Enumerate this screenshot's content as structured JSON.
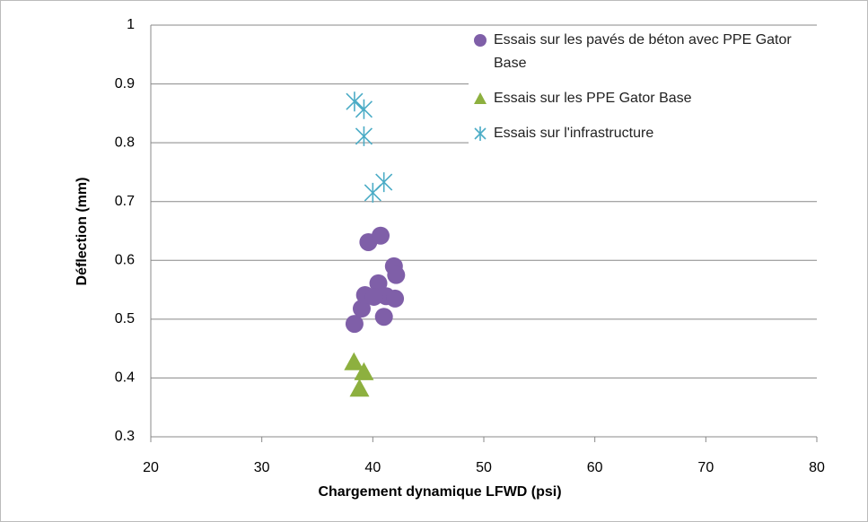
{
  "chart_data": {
    "type": "scatter",
    "xlabel": "Chargement dynamique LFWD (psi)",
    "ylabel": "Déflection (mm)",
    "xlim": [
      20,
      80
    ],
    "xticks": [
      20,
      30,
      40,
      50,
      60,
      70,
      80
    ],
    "ylim": [
      0.3,
      1
    ],
    "yticks": [
      0.3,
      0.4,
      0.5,
      0.6,
      0.7,
      0.8,
      0.9,
      1
    ],
    "grid": true,
    "legend": "top-right",
    "series": [
      {
        "name": "Essais sur les pavés de béton avec PPE Gator Base",
        "color": "#7f5fa8",
        "marker": "circle",
        "x": [
          38.35,
          39.0,
          39.3,
          39.6,
          40.7,
          40.5,
          41.0,
          41.2,
          41.9,
          42.1,
          42.0,
          40.1
        ],
        "values": [
          0.492,
          0.518,
          0.541,
          0.631,
          0.642,
          0.561,
          0.504,
          0.539,
          0.59,
          0.575,
          0.535,
          0.538
        ]
      },
      {
        "name": "Essais sur les PPE Gator Base",
        "color": "#8db03f",
        "marker": "triangle",
        "x": [
          38.3,
          39.2,
          38.8
        ],
        "values": [
          0.427,
          0.41,
          0.382
        ]
      },
      {
        "name": "Essais sur l'infrastructure",
        "color": "#4bacc6",
        "marker": "star",
        "x": [
          38.35,
          39.2,
          39.2,
          40.0,
          41.0
        ],
        "values": [
          0.87,
          0.857,
          0.811,
          0.715,
          0.733
        ]
      }
    ]
  }
}
